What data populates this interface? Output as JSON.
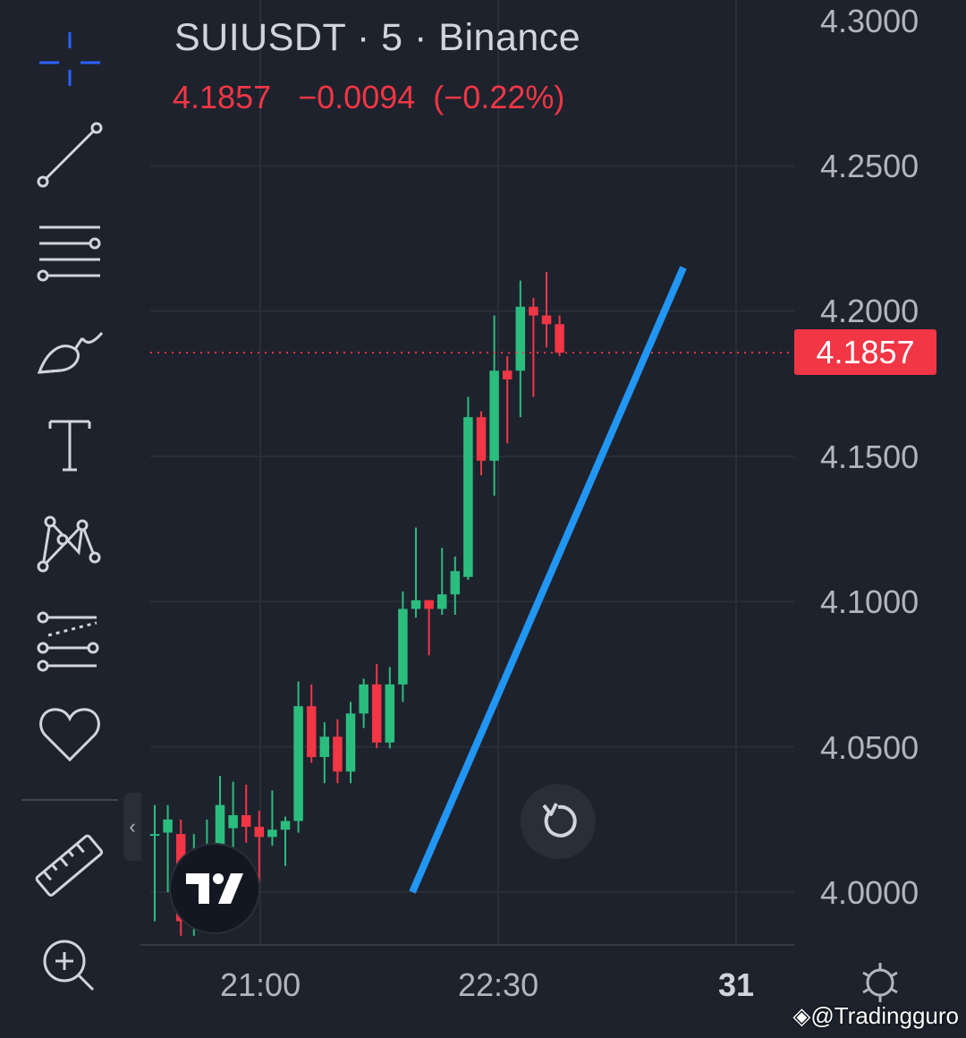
{
  "header": {
    "title": "SUIUSDT · 5 · Binance",
    "last_price": "4.1857",
    "change": "−0.0094",
    "change_pct": "(−0.22%)"
  },
  "price_tag": "4.1857",
  "y_axis_labels": [
    "4.3000",
    "4.2500",
    "4.2000",
    "4.1500",
    "4.1000",
    "4.0500",
    "4.0000"
  ],
  "x_axis_labels": [
    "21:00",
    "22:30",
    "31"
  ],
  "watermark": "@Tradingguro",
  "colors": {
    "background": "#1e222d",
    "up": "#26a69a",
    "up_candle": "#2bbd7e",
    "down": "#f23645",
    "trendline": "#2196f3",
    "grid": "#2a2e39",
    "text": "#b2b5be"
  },
  "sidebar": {
    "tools": [
      "crosshair-icon",
      "trendline-icon",
      "fib-retracement-icon",
      "brush-icon",
      "text-icon",
      "pattern-icon",
      "prediction-icon",
      "favorites-heart-icon",
      "ruler-icon",
      "zoom-in-icon"
    ]
  },
  "chart_data": {
    "type": "candlestick",
    "symbol": "SUIUSDT",
    "interval": "5",
    "exchange": "Binance",
    "ylim": [
      3.99,
      4.3
    ],
    "last_price": 4.1857,
    "candles": [
      {
        "o": 4.0195,
        "h": 4.03,
        "l": 3.99,
        "c": 4.02
      },
      {
        "o": 4.0205,
        "h": 4.03,
        "l": 4.0,
        "c": 4.025
      },
      {
        "o": 4.02,
        "h": 4.025,
        "l": 3.985,
        "c": 3.99
      },
      {
        "o": 3.99,
        "h": 4.02,
        "l": 3.985,
        "c": 4.01
      },
      {
        "o": 4.01,
        "h": 4.025,
        "l": 4.005,
        "c": 4.0125
      },
      {
        "o": 4.0125,
        "h": 4.04,
        "l": 4.0075,
        "c": 4.03
      },
      {
        "o": 4.022,
        "h": 4.038,
        "l": 4.012,
        "c": 4.0265
      },
      {
        "o": 4.0265,
        "h": 4.037,
        "l": 4.017,
        "c": 4.0225
      },
      {
        "o": 4.0225,
        "h": 4.028,
        "l": 4.003,
        "c": 4.019
      },
      {
        "o": 4.019,
        "h": 4.035,
        "l": 4.016,
        "c": 4.0215
      },
      {
        "o": 4.0215,
        "h": 4.026,
        "l": 4.009,
        "c": 4.0245
      },
      {
        "o": 4.0245,
        "h": 4.0725,
        "l": 4.0205,
        "c": 4.064
      },
      {
        "o": 4.064,
        "h": 4.0715,
        "l": 4.0445,
        "c": 4.0465
      },
      {
        "o": 4.0465,
        "h": 4.0585,
        "l": 4.0375,
        "c": 4.0535
      },
      {
        "o": 4.0535,
        "h": 4.0595,
        "l": 4.0375,
        "c": 4.0415
      },
      {
        "o": 4.0415,
        "h": 4.0655,
        "l": 4.0375,
        "c": 4.0615
      },
      {
        "o": 4.0615,
        "h": 4.0735,
        "l": 4.0565,
        "c": 4.0715
      },
      {
        "o": 4.0715,
        "h": 4.0785,
        "l": 4.0495,
        "c": 4.0515
      },
      {
        "o": 4.0515,
        "h": 4.0775,
        "l": 4.0495,
        "c": 4.0715
      },
      {
        "o": 4.0715,
        "h": 4.1035,
        "l": 4.0655,
        "c": 4.0975
      },
      {
        "o": 4.0975,
        "h": 4.1255,
        "l": 4.0945,
        "c": 4.1005
      },
      {
        "o": 4.1005,
        "h": 4.0995,
        "l": 4.0815,
        "c": 4.0975
      },
      {
        "o": 4.0975,
        "h": 4.1185,
        "l": 4.0955,
        "c": 4.1025
      },
      {
        "o": 4.1025,
        "h": 4.1155,
        "l": 4.0955,
        "c": 4.1105
      },
      {
        "o": 4.1085,
        "h": 4.1705,
        "l": 4.1075,
        "c": 4.1635
      },
      {
        "o": 4.1635,
        "h": 4.1655,
        "l": 4.1435,
        "c": 4.1485
      },
      {
        "o": 4.1485,
        "h": 4.1985,
        "l": 4.1365,
        "c": 4.1795
      },
      {
        "o": 4.1795,
        "h": 4.1845,
        "l": 4.1545,
        "c": 4.1765
      },
      {
        "o": 4.1795,
        "h": 4.2105,
        "l": 4.1635,
        "c": 4.2015
      },
      {
        "o": 4.2015,
        "h": 4.2045,
        "l": 4.1705,
        "c": 4.1985
      },
      {
        "o": 4.1985,
        "h": 4.2135,
        "l": 4.1875,
        "c": 4.1955
      },
      {
        "o": 4.1955,
        "h": 4.1985,
        "l": 4.1845,
        "c": 4.1857
      }
    ],
    "drawings": [
      {
        "type": "trendline",
        "color": "#2196f3",
        "from": {
          "price": 4.0
        },
        "to": {
          "price": 4.215
        }
      }
    ],
    "price_line": {
      "price": 4.1857,
      "style": "dotted",
      "color": "#f23645"
    },
    "grid": true
  }
}
